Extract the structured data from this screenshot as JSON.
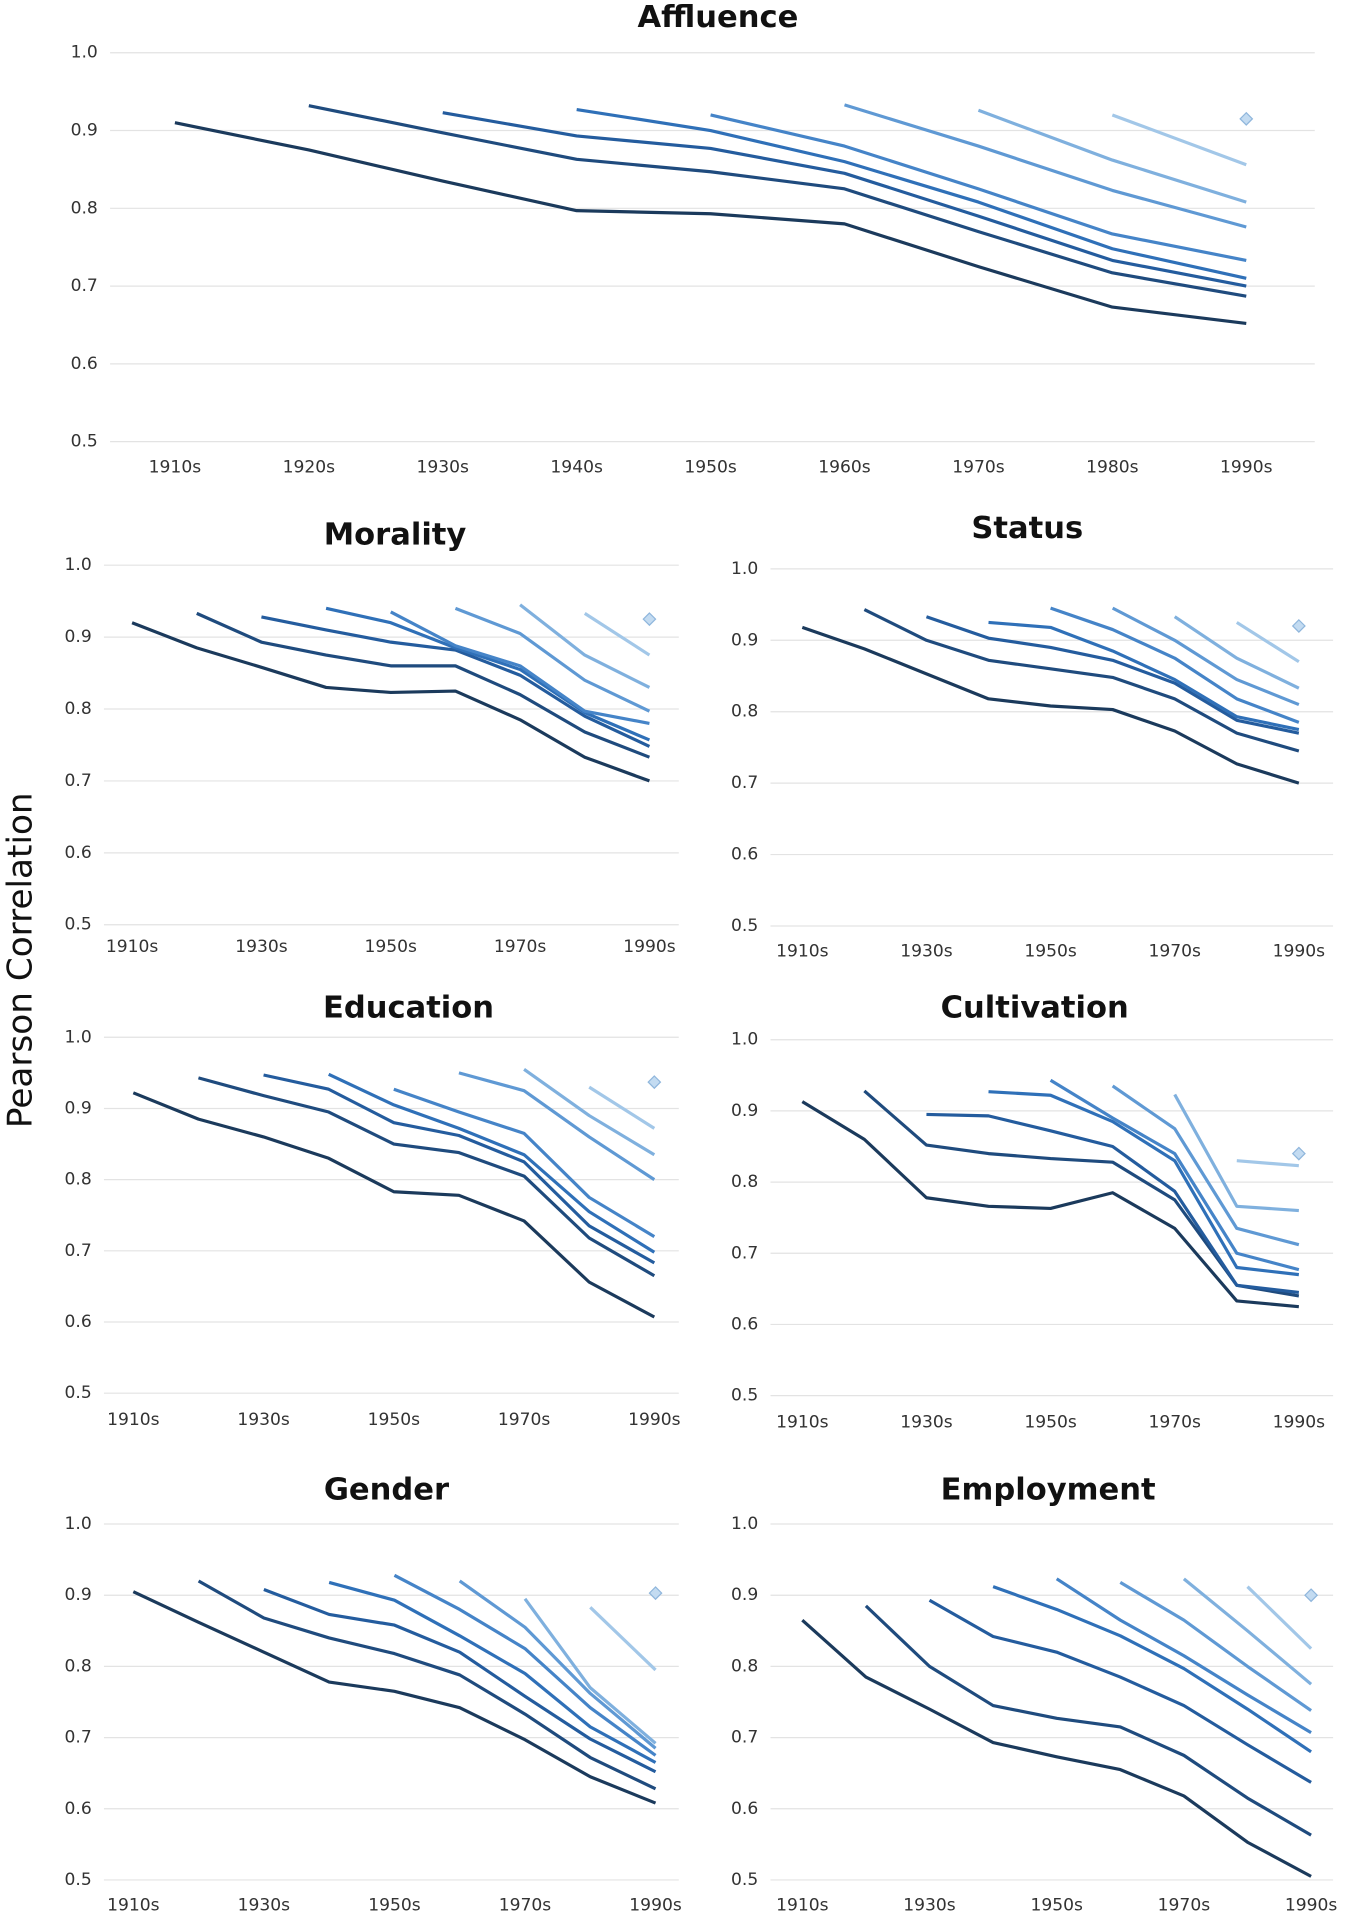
{
  "ylabel": "Pearson Correlation",
  "chart_data": [
    {
      "type": "line",
      "title": "Affluence",
      "categories": [
        "1910s",
        "1920s",
        "1930s",
        "1940s",
        "1950s",
        "1960s",
        "1970s",
        "1980s",
        "1990s"
      ],
      "ylim": [
        0.5,
        1
      ],
      "yticks": [
        0.5,
        0.6,
        0.7,
        0.8,
        0.9,
        {
          "value": 1,
          "label": "1.0"
        }
      ],
      "grid": true,
      "series": [
        {
          "color": "#1b3a5c",
          "values": [
            0.91,
            0.875,
            0.835,
            0.797,
            0.793,
            0.78,
            0.725,
            0.673,
            0.652
          ]
        },
        {
          "color": "#1f4b7e",
          "values": [
            null,
            0.932,
            0.897,
            0.863,
            0.847,
            0.825,
            0.77,
            0.717,
            0.687
          ]
        },
        {
          "color": "#245c9e",
          "values": [
            null,
            null,
            0.923,
            0.893,
            0.877,
            0.845,
            0.79,
            0.733,
            0.7
          ]
        },
        {
          "color": "#2f70b8",
          "values": [
            null,
            null,
            null,
            0.927,
            0.9,
            0.86,
            0.808,
            0.748,
            0.71
          ]
        },
        {
          "color": "#4584c8",
          "values": [
            null,
            null,
            null,
            null,
            0.92,
            0.88,
            0.825,
            0.767,
            0.733
          ]
        },
        {
          "color": "#5f99d4",
          "values": [
            null,
            null,
            null,
            null,
            null,
            0.933,
            0.88,
            0.823,
            0.776
          ]
        },
        {
          "color": "#7fb0de",
          "values": [
            null,
            null,
            null,
            null,
            null,
            null,
            0.926,
            0.862,
            0.808
          ]
        },
        {
          "color": "#a2c7e8",
          "values": [
            null,
            null,
            null,
            null,
            null,
            null,
            null,
            0.92,
            0.856
          ]
        },
        {
          "color": "#c3dbf1",
          "marker": "diamond",
          "values": [
            null,
            null,
            null,
            null,
            null,
            null,
            null,
            null,
            0.915
          ]
        }
      ]
    },
    {
      "type": "line",
      "title": "Morality",
      "categories": [
        "1910s",
        null,
        "1930s",
        null,
        "1950s",
        null,
        "1970s",
        null,
        "1990s"
      ],
      "ylim": [
        0.5,
        1
      ],
      "yticks": [
        0.5,
        0.6,
        0.7,
        0.8,
        0.9,
        {
          "value": 1,
          "label": "1.0"
        }
      ],
      "grid": true,
      "series": [
        {
          "color": "#1b3a5c",
          "values": [
            0.92,
            0.885,
            0.858,
            0.83,
            0.823,
            0.825,
            0.785,
            0.733,
            0.7
          ]
        },
        {
          "color": "#1f4b7e",
          "values": [
            null,
            0.933,
            0.893,
            0.875,
            0.86,
            0.86,
            0.82,
            0.768,
            0.733
          ]
        },
        {
          "color": "#245c9e",
          "values": [
            null,
            null,
            0.928,
            0.91,
            0.893,
            0.882,
            0.847,
            0.79,
            0.748
          ]
        },
        {
          "color": "#2f70b8",
          "values": [
            null,
            null,
            null,
            0.94,
            0.92,
            0.885,
            0.855,
            0.795,
            0.757
          ]
        },
        {
          "color": "#4584c8",
          "values": [
            null,
            null,
            null,
            null,
            0.935,
            0.888,
            0.86,
            0.797,
            0.78
          ]
        },
        {
          "color": "#5f99d4",
          "values": [
            null,
            null,
            null,
            null,
            null,
            0.94,
            0.905,
            0.84,
            0.797
          ]
        },
        {
          "color": "#7fb0de",
          "values": [
            null,
            null,
            null,
            null,
            null,
            null,
            0.945,
            0.875,
            0.83
          ]
        },
        {
          "color": "#a2c7e8",
          "values": [
            null,
            null,
            null,
            null,
            null,
            null,
            null,
            0.933,
            0.875
          ]
        },
        {
          "color": "#c3dbf1",
          "marker": "diamond",
          "values": [
            null,
            null,
            null,
            null,
            null,
            null,
            null,
            null,
            0.925
          ]
        }
      ]
    },
    {
      "type": "line",
      "title": "Status",
      "categories": [
        "1910s",
        null,
        "1930s",
        null,
        "1950s",
        null,
        "1970s",
        null,
        "1990s"
      ],
      "ylim": [
        0.5,
        1
      ],
      "yticks": [
        0.5,
        0.6,
        0.7,
        0.8,
        0.9,
        {
          "value": 1,
          "label": "1.0"
        }
      ],
      "grid": true,
      "series": [
        {
          "color": "#1b3a5c",
          "values": [
            0.918,
            0.888,
            0.853,
            0.818,
            0.808,
            0.803,
            0.773,
            0.727,
            0.7
          ]
        },
        {
          "color": "#1f4b7e",
          "values": [
            null,
            0.943,
            0.9,
            0.872,
            0.86,
            0.848,
            0.818,
            0.77,
            0.745
          ]
        },
        {
          "color": "#245c9e",
          "values": [
            null,
            null,
            0.933,
            0.903,
            0.89,
            0.872,
            0.84,
            0.788,
            0.77
          ]
        },
        {
          "color": "#2f70b8",
          "values": [
            null,
            null,
            null,
            0.925,
            0.918,
            0.885,
            0.845,
            0.793,
            0.775
          ]
        },
        {
          "color": "#4584c8",
          "values": [
            null,
            null,
            null,
            null,
            0.945,
            0.915,
            0.875,
            0.818,
            0.785
          ]
        },
        {
          "color": "#5f99d4",
          "values": [
            null,
            null,
            null,
            null,
            null,
            0.945,
            0.9,
            0.845,
            0.81
          ]
        },
        {
          "color": "#7fb0de",
          "values": [
            null,
            null,
            null,
            null,
            null,
            null,
            0.933,
            0.875,
            0.833
          ]
        },
        {
          "color": "#a2c7e8",
          "values": [
            null,
            null,
            null,
            null,
            null,
            null,
            null,
            0.925,
            0.87
          ]
        },
        {
          "color": "#c3dbf1",
          "marker": "diamond",
          "values": [
            null,
            null,
            null,
            null,
            null,
            null,
            null,
            null,
            0.92
          ]
        }
      ]
    },
    {
      "type": "line",
      "title": "Education",
      "categories": [
        "1910s",
        null,
        "1930s",
        null,
        "1950s",
        null,
        "1970s",
        null,
        "1990s"
      ],
      "ylim": [
        0.5,
        1
      ],
      "yticks": [
        0.5,
        0.6,
        0.7,
        0.8,
        0.9,
        {
          "value": 1,
          "label": "1.0"
        }
      ],
      "grid": true,
      "series": [
        {
          "color": "#1b3a5c",
          "values": [
            0.922,
            0.885,
            0.86,
            0.83,
            0.783,
            0.778,
            0.742,
            0.656,
            0.607
          ]
        },
        {
          "color": "#1f4b7e",
          "values": [
            null,
            0.943,
            0.918,
            0.895,
            0.85,
            0.838,
            0.805,
            0.718,
            0.665
          ]
        },
        {
          "color": "#245c9e",
          "values": [
            null,
            null,
            0.947,
            0.927,
            0.88,
            0.862,
            0.825,
            0.735,
            0.683
          ]
        },
        {
          "color": "#2f70b8",
          "values": [
            null,
            null,
            null,
            0.948,
            0.905,
            0.872,
            0.835,
            0.755,
            0.698
          ]
        },
        {
          "color": "#4584c8",
          "values": [
            null,
            null,
            null,
            null,
            0.927,
            0.895,
            0.865,
            0.775,
            0.72
          ]
        },
        {
          "color": "#5f99d4",
          "values": [
            null,
            null,
            null,
            null,
            null,
            0.95,
            0.925,
            0.86,
            0.8
          ]
        },
        {
          "color": "#7fb0de",
          "values": [
            null,
            null,
            null,
            null,
            null,
            null,
            0.955,
            0.89,
            0.835
          ]
        },
        {
          "color": "#a2c7e8",
          "values": [
            null,
            null,
            null,
            null,
            null,
            null,
            null,
            0.93,
            0.872
          ]
        },
        {
          "color": "#c3dbf1",
          "marker": "diamond",
          "values": [
            null,
            null,
            null,
            null,
            null,
            null,
            null,
            null,
            0.937
          ]
        }
      ]
    },
    {
      "type": "line",
      "title": "Cultivation",
      "categories": [
        "1910s",
        null,
        "1930s",
        null,
        "1950s",
        null,
        "1970s",
        null,
        "1990s"
      ],
      "ylim": [
        0.5,
        1
      ],
      "yticks": [
        0.5,
        0.6,
        0.7,
        0.8,
        0.9,
        {
          "value": 1,
          "label": "1.0"
        }
      ],
      "grid": true,
      "series": [
        {
          "color": "#1b3a5c",
          "values": [
            0.913,
            0.86,
            0.778,
            0.766,
            0.763,
            0.785,
            0.735,
            0.633,
            0.625
          ]
        },
        {
          "color": "#1f4b7e",
          "values": [
            null,
            0.928,
            0.852,
            0.84,
            0.833,
            0.828,
            0.775,
            0.655,
            0.64
          ]
        },
        {
          "color": "#245c9e",
          "values": [
            null,
            null,
            0.895,
            0.893,
            0.872,
            0.85,
            0.787,
            0.655,
            0.645
          ]
        },
        {
          "color": "#2f70b8",
          "values": [
            null,
            null,
            null,
            0.927,
            0.922,
            0.885,
            0.83,
            0.68,
            0.67
          ]
        },
        {
          "color": "#4584c8",
          "values": [
            null,
            null,
            null,
            null,
            0.943,
            0.89,
            0.84,
            0.7,
            0.677
          ]
        },
        {
          "color": "#5f99d4",
          "values": [
            null,
            null,
            null,
            null,
            null,
            0.935,
            0.875,
            0.735,
            0.712
          ]
        },
        {
          "color": "#7fb0de",
          "values": [
            null,
            null,
            null,
            null,
            null,
            null,
            0.923,
            0.766,
            0.76
          ]
        },
        {
          "color": "#a2c7e8",
          "values": [
            null,
            null,
            null,
            null,
            null,
            null,
            null,
            0.83,
            0.823
          ]
        },
        {
          "color": "#c3dbf1",
          "marker": "diamond",
          "values": [
            null,
            null,
            null,
            null,
            null,
            null,
            null,
            null,
            0.84
          ]
        }
      ]
    },
    {
      "type": "line",
      "title": "Gender",
      "categories": [
        "1910s",
        null,
        "1930s",
        null,
        "1950s",
        null,
        "1970s",
        null,
        "1990s"
      ],
      "ylim": [
        0.5,
        1
      ],
      "yticks": [
        0.5,
        0.6,
        0.7,
        0.8,
        0.9,
        {
          "value": 1,
          "label": "1.0"
        }
      ],
      "grid": true,
      "series": [
        {
          "color": "#1b3a5c",
          "values": [
            0.905,
            0.862,
            0.82,
            0.778,
            0.765,
            0.742,
            0.697,
            0.645,
            0.608
          ]
        },
        {
          "color": "#1f4b7e",
          "values": [
            null,
            0.92,
            0.868,
            0.84,
            0.818,
            0.788,
            0.733,
            0.672,
            0.628
          ]
        },
        {
          "color": "#245c9e",
          "values": [
            null,
            null,
            0.908,
            0.873,
            0.858,
            0.82,
            0.758,
            0.698,
            0.652
          ]
        },
        {
          "color": "#2f70b8",
          "values": [
            null,
            null,
            null,
            0.918,
            0.893,
            0.843,
            0.79,
            0.715,
            0.665
          ]
        },
        {
          "color": "#4584c8",
          "values": [
            null,
            null,
            null,
            null,
            0.928,
            0.88,
            0.825,
            0.742,
            0.675
          ]
        },
        {
          "color": "#5f99d4",
          "values": [
            null,
            null,
            null,
            null,
            null,
            0.92,
            0.855,
            0.762,
            0.685
          ]
        },
        {
          "color": "#7fb0de",
          "values": [
            null,
            null,
            null,
            null,
            null,
            null,
            0.895,
            0.77,
            0.692
          ]
        },
        {
          "color": "#a2c7e8",
          "values": [
            null,
            null,
            null,
            null,
            null,
            null,
            null,
            0.883,
            0.795
          ]
        },
        {
          "color": "#c3dbf1",
          "marker": "diamond",
          "values": [
            null,
            null,
            null,
            null,
            null,
            null,
            null,
            null,
            0.903
          ]
        }
      ]
    },
    {
      "type": "line",
      "title": "Employment",
      "categories": [
        "1910s",
        null,
        "1930s",
        null,
        "1950s",
        null,
        "1970s",
        null,
        "1990s"
      ],
      "ylim": [
        0.5,
        1
      ],
      "yticks": [
        0.5,
        0.6,
        0.7,
        0.8,
        0.9,
        {
          "value": 1,
          "label": "1.0"
        }
      ],
      "grid": true,
      "series": [
        {
          "color": "#1b3a5c",
          "values": [
            0.865,
            0.785,
            0.74,
            0.693,
            0.673,
            0.655,
            0.618,
            0.553,
            0.505
          ]
        },
        {
          "color": "#1f4b7e",
          "values": [
            null,
            0.885,
            0.8,
            0.745,
            0.727,
            0.715,
            0.675,
            0.615,
            0.563
          ]
        },
        {
          "color": "#245c9e",
          "values": [
            null,
            null,
            0.893,
            0.842,
            0.82,
            0.785,
            0.745,
            0.69,
            0.637
          ]
        },
        {
          "color": "#2f70b8",
          "values": [
            null,
            null,
            null,
            0.912,
            0.88,
            0.843,
            0.797,
            0.74,
            0.68
          ]
        },
        {
          "color": "#4584c8",
          "values": [
            null,
            null,
            null,
            null,
            0.923,
            0.865,
            0.815,
            0.76,
            0.707
          ]
        },
        {
          "color": "#5f99d4",
          "values": [
            null,
            null,
            null,
            null,
            null,
            0.918,
            0.865,
            0.8,
            0.738
          ]
        },
        {
          "color": "#7fb0de",
          "values": [
            null,
            null,
            null,
            null,
            null,
            null,
            0.923,
            0.85,
            0.775
          ]
        },
        {
          "color": "#a2c7e8",
          "values": [
            null,
            null,
            null,
            null,
            null,
            null,
            null,
            0.912,
            0.825
          ]
        },
        {
          "color": "#c3dbf1",
          "marker": "diamond",
          "values": [
            null,
            null,
            null,
            null,
            null,
            null,
            null,
            null,
            0.9
          ]
        }
      ]
    }
  ]
}
